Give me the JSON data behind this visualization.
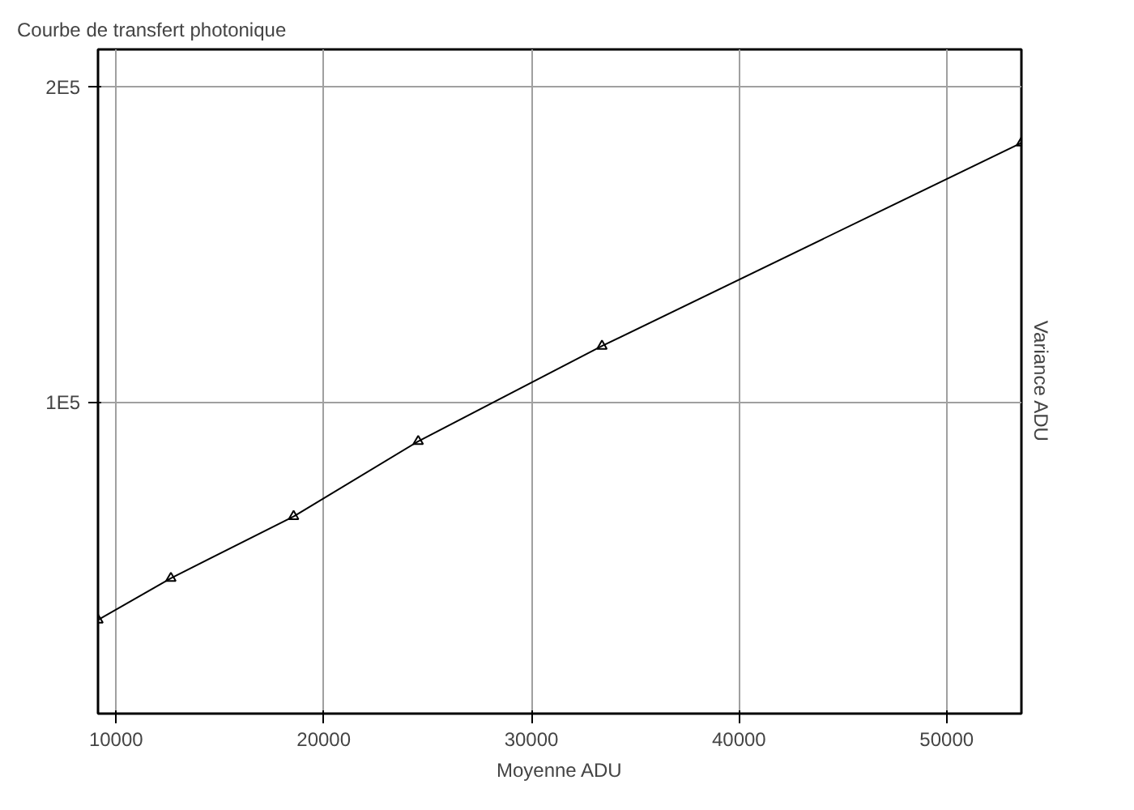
{
  "chart_data": {
    "type": "line",
    "title": "Courbe de transfert photonique",
    "xlabel": "Moyenne ADU",
    "ylabel": "Variance ADU",
    "x": [
      9130,
      12640,
      18550,
      24550,
      33400,
      53600
    ],
    "series": [
      {
        "color": "#000000",
        "values": [
          31200,
          44400,
          64000,
          87800,
          118000,
          182400
        ]
      }
    ],
    "xlim": [
      9130,
      53600
    ],
    "xticks": [
      10000,
      20000,
      30000,
      40000,
      50000
    ],
    "ylim": [
      1500,
      212000
    ],
    "yticks": [
      {
        "value": 100000,
        "label": "1E5"
      },
      {
        "value": 200000,
        "label": "2E5"
      }
    ],
    "grid": true,
    "marker": "triangle",
    "line_style": "solid"
  }
}
